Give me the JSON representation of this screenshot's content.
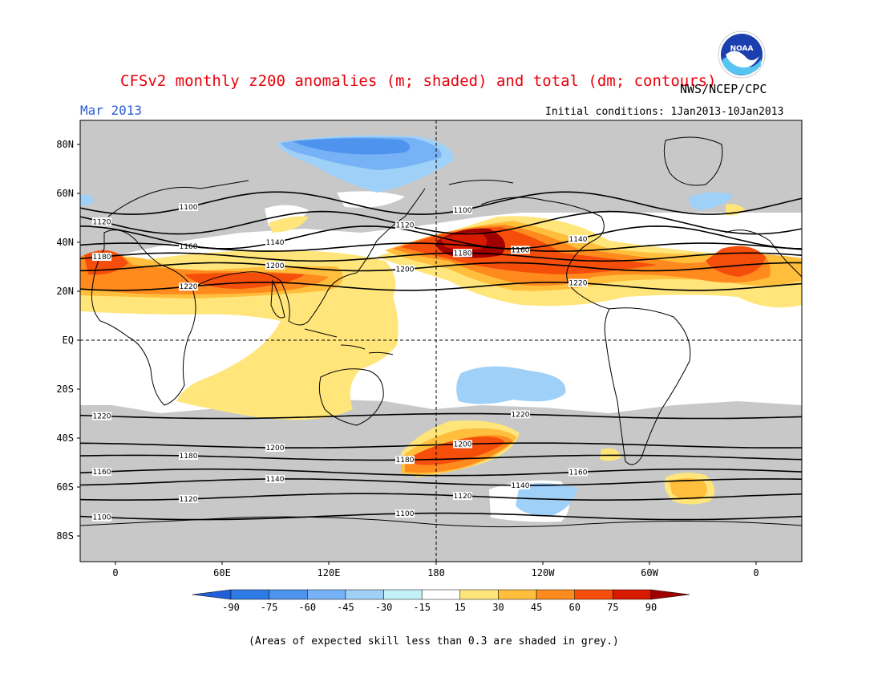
{
  "title": "CFSv2 monthly z200 anomalies (m; shaded) and total (dm; contours)",
  "month": "Mar 2013",
  "agency": "NWS/NCEP/CPC",
  "initial_conditions": "Initial conditions: 1Jan2013-10Jan2013",
  "note": "(Areas of expected skill less than 0.3 are shaded in grey.)",
  "logo_text": "NOAA",
  "lat_labels": [
    "80N",
    "60N",
    "40N",
    "20N",
    "EQ",
    "20S",
    "40S",
    "60S",
    "80S"
  ],
  "lon_labels": [
    "0",
    "60E",
    "120E",
    "180",
    "120W",
    "60W",
    "0"
  ],
  "colorbar": {
    "labels": [
      "-90",
      "-75",
      "-60",
      "-45",
      "-30",
      "-15",
      "15",
      "30",
      "45",
      "60",
      "75",
      "90"
    ],
    "colors": [
      "#1f5fd9",
      "#2f7be6",
      "#4e93ee",
      "#76b2f5",
      "#9fd0f8",
      "#c4f0f8",
      "#ffffff",
      "#ffe57a",
      "#ffbe3c",
      "#ff8a1e",
      "#f54d0a",
      "#d71a00",
      "#a00000"
    ]
  },
  "colors": {
    "grey_low_skill": "#c8c8c8",
    "contour": "#000000"
  },
  "contours": [
    {
      "label": "1100",
      "lat": -72
    },
    {
      "label": "1120",
      "lat": -64
    },
    {
      "label": "1140",
      "lat": -58
    },
    {
      "label": "1160",
      "lat": -54
    },
    {
      "label": "1180",
      "lat": -48
    },
    {
      "label": "1200",
      "lat": -43
    },
    {
      "label": "1220",
      "lat": -31
    },
    {
      "label": "1220",
      "lat": 22
    },
    {
      "label": "1200",
      "lat": 30
    },
    {
      "label": "1180",
      "lat": 34
    },
    {
      "label": "1160",
      "lat": 38
    },
    {
      "label": "1140",
      "lat": 42
    },
    {
      "label": "1120",
      "lat": 48
    },
    {
      "label": "1100",
      "lat": 56
    }
  ]
}
